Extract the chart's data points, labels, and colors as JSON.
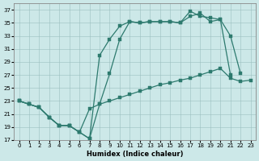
{
  "xlabel": "Humidex (Indice chaleur)",
  "xlim": [
    -0.5,
    23.5
  ],
  "ylim": [
    17,
    38
  ],
  "yticks": [
    17,
    19,
    21,
    23,
    25,
    27,
    29,
    31,
    33,
    35,
    37
  ],
  "xticks": [
    0,
    1,
    2,
    3,
    4,
    5,
    6,
    7,
    8,
    9,
    10,
    11,
    12,
    13,
    14,
    15,
    16,
    17,
    18,
    19,
    20,
    21,
    22,
    23
  ],
  "bg_color": "#cce8e8",
  "grid_color": "#9bbfbf",
  "line_color": "#2d7a6e",
  "line1_x": [
    0,
    1,
    2,
    3,
    4,
    5,
    6,
    7,
    8,
    9,
    10,
    11,
    12,
    13,
    14,
    15,
    16,
    17,
    18,
    19,
    20,
    21
  ],
  "line1_y": [
    23,
    22.5,
    22,
    20.5,
    19.2,
    19.2,
    18.2,
    17.2,
    30,
    32.5,
    34.5,
    35.2,
    35.0,
    35.2,
    35.2,
    35.2,
    35.0,
    36.8,
    36.0,
    35.8,
    35.5,
    27.0
  ],
  "line2_x": [
    0,
    1,
    2,
    3,
    4,
    5,
    6,
    7,
    8,
    9,
    10,
    11,
    12,
    13,
    14,
    15,
    16,
    17,
    18,
    19,
    20,
    21,
    22
  ],
  "line2_y": [
    23,
    22.5,
    22,
    20.5,
    19.2,
    19.2,
    18.2,
    17.2,
    22.5,
    27.2,
    32.5,
    35.2,
    35.0,
    35.2,
    35.2,
    35.2,
    35.0,
    36.0,
    36.5,
    35.2,
    35.5,
    33.0,
    27.2
  ],
  "line3_x": [
    0,
    1,
    2,
    3,
    4,
    5,
    6,
    7,
    8,
    9,
    10,
    11,
    12,
    13,
    14,
    15,
    16,
    17,
    18,
    19,
    20,
    21,
    22,
    23
  ],
  "line3_y": [
    23,
    22.5,
    22,
    20.5,
    19.2,
    19.2,
    18.2,
    21.8,
    22.5,
    23.0,
    23.5,
    24.0,
    24.5,
    25.0,
    25.5,
    25.8,
    26.2,
    26.5,
    27.0,
    27.5,
    28.0,
    26.5,
    26.0,
    26.2
  ]
}
